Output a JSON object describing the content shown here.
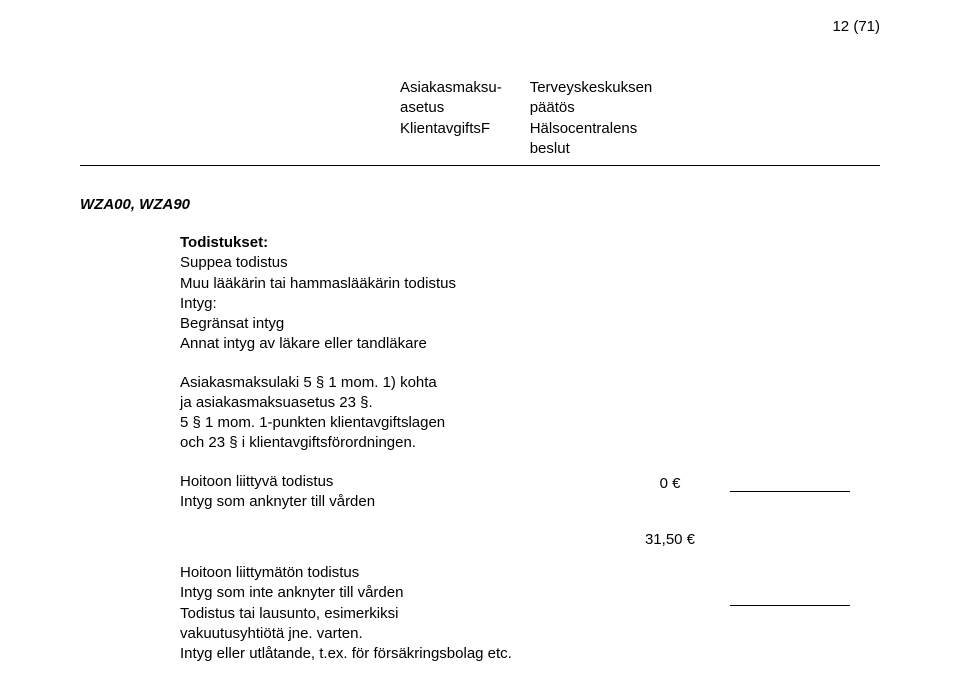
{
  "pageNumber": "12 (71)",
  "header": {
    "col1": [
      "Asiakasmaksu-",
      "asetus",
      "KlientavgiftsF"
    ],
    "col2": [
      "Terveyskeskuksen",
      "päätös",
      "Hälsocentralens",
      "beslut"
    ]
  },
  "code": "WZA00, WZA90",
  "section": {
    "title": "Todistukset:",
    "lines": [
      "Suppea todistus",
      "Muu lääkärin tai hammaslääkärin todistus",
      "Intyg:",
      "Begränsat intyg",
      "Annat intyg av läkare eller tandläkare"
    ]
  },
  "law": [
    "Asiakasmaksulaki 5 § 1 mom. 1) kohta",
    "ja asiakasmaksuasetus 23 §.",
    "5 § 1 mom. 1-punkten klientavgiftslagen",
    "och 23 § i klientavgiftsförordningen."
  ],
  "entry1": {
    "line1": "Hoitoon liittyvä todistus",
    "line2": "Intyg som anknyter till vården",
    "amount": "0 €"
  },
  "entry2": {
    "line1": "Hoitoon liittymätön todistus",
    "line2": " Intyg som inte anknyter till vården",
    "line3": "Todistus tai lausunto, esimerkiksi",
    "line4": "vakuutusyhtiötä jne. varten.",
    "line5": "Intyg eller utlåtande, t.ex. för försäkringsbolag etc.",
    "amount": "31,50 €"
  }
}
